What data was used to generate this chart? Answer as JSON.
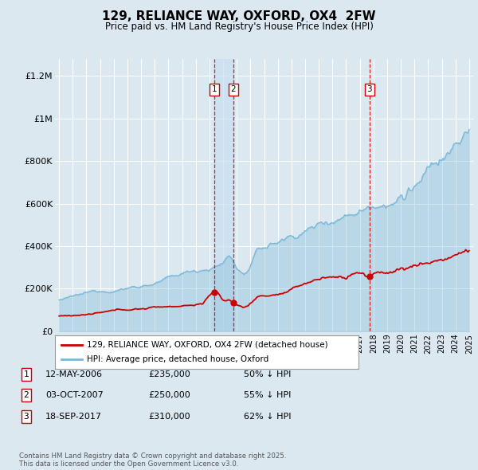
{
  "title": "129, RELIANCE WAY, OXFORD, OX4  2FW",
  "subtitle": "Price paid vs. HM Land Registry's House Price Index (HPI)",
  "hpi_color": "#7ab8d9",
  "price_color": "#cc0000",
  "vline_color": "#cc0000",
  "background_color": "#dce8f0",
  "plot_bg_color": "#dce8f0",
  "fill_color": "#c5dff0",
  "ylabel_values": [
    "£0",
    "£200K",
    "£400K",
    "£600K",
    "£800K",
    "£1M",
    "£1.2M"
  ],
  "yticks": [
    0,
    200000,
    400000,
    600000,
    800000,
    1000000,
    1200000
  ],
  "xstart": 1995,
  "xend": 2025,
  "sales": [
    {
      "num": 1,
      "date_dec": 2006.36,
      "price": 235000,
      "label": "12-MAY-2006",
      "price_str": "£235,000",
      "pct": "50% ↓ HPI"
    },
    {
      "num": 2,
      "date_dec": 2007.75,
      "price": 250000,
      "label": "03-OCT-2007",
      "price_str": "£250,000",
      "pct": "55% ↓ HPI"
    },
    {
      "num": 3,
      "date_dec": 2017.71,
      "price": 310000,
      "label": "18-SEP-2017",
      "price_str": "£310,000",
      "pct": "62% ↓ HPI"
    }
  ],
  "legend_label_price": "129, RELIANCE WAY, OXFORD, OX4 2FW (detached house)",
  "legend_label_hpi": "HPI: Average price, detached house, Oxford",
  "footer": "Contains HM Land Registry data © Crown copyright and database right 2025.\nThis data is licensed under the Open Government Licence v3.0."
}
